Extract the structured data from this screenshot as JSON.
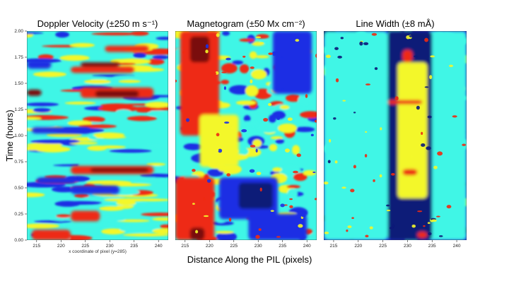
{
  "colors": {
    "dark_blue": "#0c1a78",
    "blue": "#1b2fe4",
    "cyan": "#3ff6e6",
    "yellow": "#f3f72a",
    "red": "#ee2a12",
    "dark_red": "#7a0a0c"
  },
  "chart_data": {
    "type": "heatmap",
    "ylabel": "Time (hours)",
    "xlabel": "Distance Along the PIL (pixels)",
    "xlim": [
      213,
      242
    ],
    "ylim": [
      0.0,
      2.0
    ],
    "y_ticks": [
      "0.00",
      "0.25",
      "0.50",
      "0.75",
      "1.00",
      "1.25",
      "1.50",
      "1.75",
      "2.00"
    ],
    "x_ticks": [
      "215",
      "220",
      "225",
      "230",
      "235",
      "240"
    ],
    "colormap": [
      "dark_blue",
      "blue",
      "cyan",
      "yellow",
      "red",
      "dark_red"
    ],
    "panels": [
      {
        "title": "Doppler Velocity (±250 m s⁻¹)",
        "x_axis_note": "x coordinate of pixel (y=285)",
        "background_level": "cyan",
        "features": [
          {
            "x": [
              222,
              235
            ],
            "y": [
              1.6,
              1.66
            ],
            "level": "red"
          },
          {
            "x": [
              224,
              232
            ],
            "y": [
              1.66,
              1.7
            ],
            "level": "dark_red"
          },
          {
            "x": [
              229,
              238
            ],
            "y": [
              1.8,
              1.86
            ],
            "level": "red"
          },
          {
            "x": [
              224,
              239
            ],
            "y": [
              1.36,
              1.46
            ],
            "level": "red"
          },
          {
            "x": [
              227,
              236
            ],
            "y": [
              1.37,
              1.43
            ],
            "level": "dark_red"
          },
          {
            "x": [
              213,
              216
            ],
            "y": [
              1.38,
              1.44
            ],
            "level": "dark_red"
          },
          {
            "x": [
              222,
              239
            ],
            "y": [
              0.63,
              0.71
            ],
            "level": "red"
          },
          {
            "x": [
              226,
              238
            ],
            "y": [
              0.65,
              0.69
            ],
            "level": "dark_red"
          },
          {
            "x": [
              214,
              222
            ],
            "y": [
              0.0,
              0.1
            ],
            "level": "red"
          },
          {
            "x": [
              222,
              228
            ],
            "y": [
              0.18,
              0.28
            ],
            "level": "red"
          },
          {
            "x": [
              215,
              223
            ],
            "y": [
              0.54,
              0.6
            ],
            "level": "blue"
          },
          {
            "x": [
              222,
              232
            ],
            "y": [
              0.44,
              0.52
            ],
            "level": "blue"
          },
          {
            "x": [
              214,
              226
            ],
            "y": [
              1.02,
              1.08
            ],
            "level": "blue"
          },
          {
            "x": [
              213,
              218
            ],
            "y": [
              1.64,
              1.72
            ],
            "level": "blue"
          }
        ]
      },
      {
        "title": "Magnetogram (±50 Mx cm⁻²)",
        "background_level": "cyan",
        "features": [
          {
            "x": [
              214,
              222
            ],
            "y": [
              1.0,
              2.0
            ],
            "level": "red"
          },
          {
            "x": [
              216,
              220
            ],
            "y": [
              1.7,
              1.95
            ],
            "level": "dark_red"
          },
          {
            "x": [
              218,
              226
            ],
            "y": [
              0.7,
              1.2
            ],
            "level": "yellow"
          },
          {
            "x": [
              213,
              221
            ],
            "y": [
              0.0,
              0.6
            ],
            "level": "red"
          },
          {
            "x": [
              216,
              219
            ],
            "y": [
              0.0,
              0.12
            ],
            "level": "dark_red"
          },
          {
            "x": [
              222,
              234
            ],
            "y": [
              0.2,
              0.6
            ],
            "level": "blue"
          },
          {
            "x": [
              226,
              233
            ],
            "y": [
              0.3,
              0.55
            ],
            "level": "dark_blue"
          },
          {
            "x": [
              228,
              240
            ],
            "y": [
              0.0,
              0.25
            ],
            "level": "blue"
          },
          {
            "x": [
              233,
              241
            ],
            "y": [
              1.4,
              2.0
            ],
            "level": "blue"
          }
        ]
      },
      {
        "title": "Line Width (±8 mÅ)",
        "background_level": "blue",
        "features": [
          {
            "x": [
              213,
              226
            ],
            "y": [
              0.0,
              2.0
            ],
            "level": "cyan"
          },
          {
            "x": [
              234,
              242
            ],
            "y": [
              0.0,
              2.0
            ],
            "level": "cyan"
          },
          {
            "x": [
              226,
              235
            ],
            "y": [
              0.0,
              2.0
            ],
            "level": "dark_blue"
          },
          {
            "x": [
              228,
              234
            ],
            "y": [
              0.4,
              1.7
            ],
            "level": "yellow"
          },
          {
            "x": [
              229,
              231
            ],
            "y": [
              1.7,
              1.82
            ],
            "level": "red"
          },
          {
            "x": [
              226,
              233
            ],
            "y": [
              1.3,
              1.34
            ],
            "level": "red"
          },
          {
            "x": [
              229,
              232
            ],
            "y": [
              0.62,
              0.68
            ],
            "level": "red"
          },
          {
            "x": [
              232,
              234
            ],
            "y": [
              0.02,
              0.08
            ],
            "level": "red"
          }
        ]
      }
    ]
  }
}
